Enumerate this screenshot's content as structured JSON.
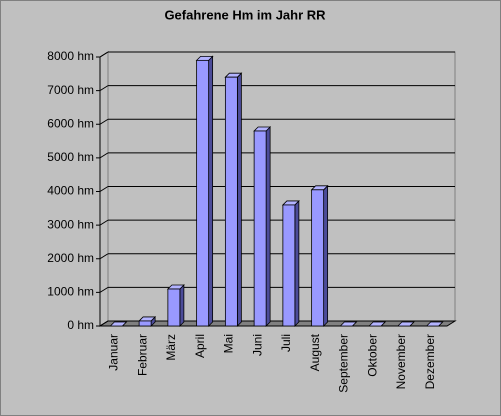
{
  "chart_data": {
    "type": "bar",
    "title": "Gefahrene Hm im Jahr RR",
    "categories": [
      "Januar",
      "Februar",
      "März",
      "April",
      "Mai",
      "Juni",
      "Juli",
      "August",
      "September",
      "Oktober",
      "November",
      "Dezember"
    ],
    "values": [
      0,
      150,
      1100,
      7900,
      7400,
      5800,
      3600,
      4050,
      0,
      0,
      0,
      0
    ],
    "color": "#9999ff",
    "ylim": [
      0,
      8000
    ],
    "yticks": [
      {
        "value": 0,
        "label": "0 hm"
      },
      {
        "value": 1000,
        "label": "1000 hm"
      },
      {
        "value": 2000,
        "label": "2000 hm"
      },
      {
        "value": 3000,
        "label": "3000 hm"
      },
      {
        "value": 4000,
        "label": "4000 hm"
      },
      {
        "value": 5000,
        "label": "5000 hm"
      },
      {
        "value": 6000,
        "label": "6000 hm"
      },
      {
        "value": 7000,
        "label": "7000 hm"
      },
      {
        "value": 8000,
        "label": "8000 hm"
      }
    ],
    "grid": true
  }
}
